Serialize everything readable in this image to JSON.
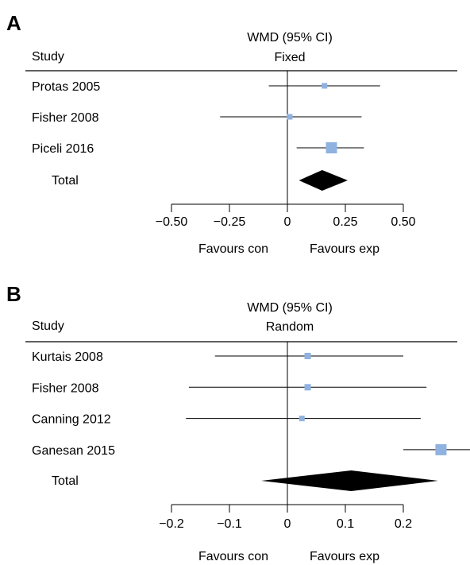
{
  "chart_data": [
    {
      "type": "forest",
      "panel_label": "A",
      "study_header": "Study",
      "effect_header": "WMD (95% CI)",
      "model": "Fixed",
      "studies": [
        {
          "name": "Protas 2005",
          "estimate": 0.16,
          "ci": [
            -0.08,
            0.4
          ],
          "weight": 1
        },
        {
          "name": "Fisher 2008",
          "estimate": 0.01,
          "ci": [
            -0.29,
            0.32
          ],
          "weight": 1
        },
        {
          "name": "Piceli 2016",
          "estimate": 0.19,
          "ci": [
            0.04,
            0.33
          ],
          "weight": 2
        }
      ],
      "total": {
        "name": "Total",
        "estimate": 0.15,
        "ci": [
          0.05,
          0.26
        ]
      },
      "xlim": [
        -0.5,
        0.5
      ],
      "ticks": [
        -0.5,
        -0.25,
        0,
        0.25,
        0.5
      ],
      "tick_labels": [
        "−0.50",
        "−0.25",
        "0",
        "0.25",
        "0.50"
      ],
      "favours_left": "Favours con",
      "favours_right": "Favours exp",
      "box_color": "#8fb2e0"
    },
    {
      "type": "forest",
      "panel_label": "B",
      "study_header": "Study",
      "effect_header": "WMD (95% CI)",
      "model": "Random",
      "studies": [
        {
          "name": "Kurtais 2008",
          "estimate": 0.035,
          "ci": [
            -0.125,
            0.2
          ],
          "weight": 1.15
        },
        {
          "name": "Fisher 2008",
          "estimate": 0.035,
          "ci": [
            -0.17,
            0.24
          ],
          "weight": 1.15
        },
        {
          "name": "Canning 2012",
          "estimate": 0.025,
          "ci": [
            -0.175,
            0.23
          ],
          "weight": 1
        },
        {
          "name": "Ganesan 2015",
          "estimate": 0.265,
          "ci": [
            0.2,
            0.33
          ],
          "weight": 2
        }
      ],
      "total": {
        "name": "Total",
        "estimate": 0.11,
        "ci": [
          -0.045,
          0.26
        ]
      },
      "xlim": [
        -0.2,
        0.2
      ],
      "ticks": [
        -0.2,
        -0.1,
        0,
        0.1,
        0.2
      ],
      "tick_labels": [
        "−0.2",
        "−0.1",
        "0",
        "0.1",
        "0.2"
      ],
      "favours_left": "Favours con",
      "favours_right": "Favours exp",
      "box_color": "#8fb2e0"
    }
  ]
}
